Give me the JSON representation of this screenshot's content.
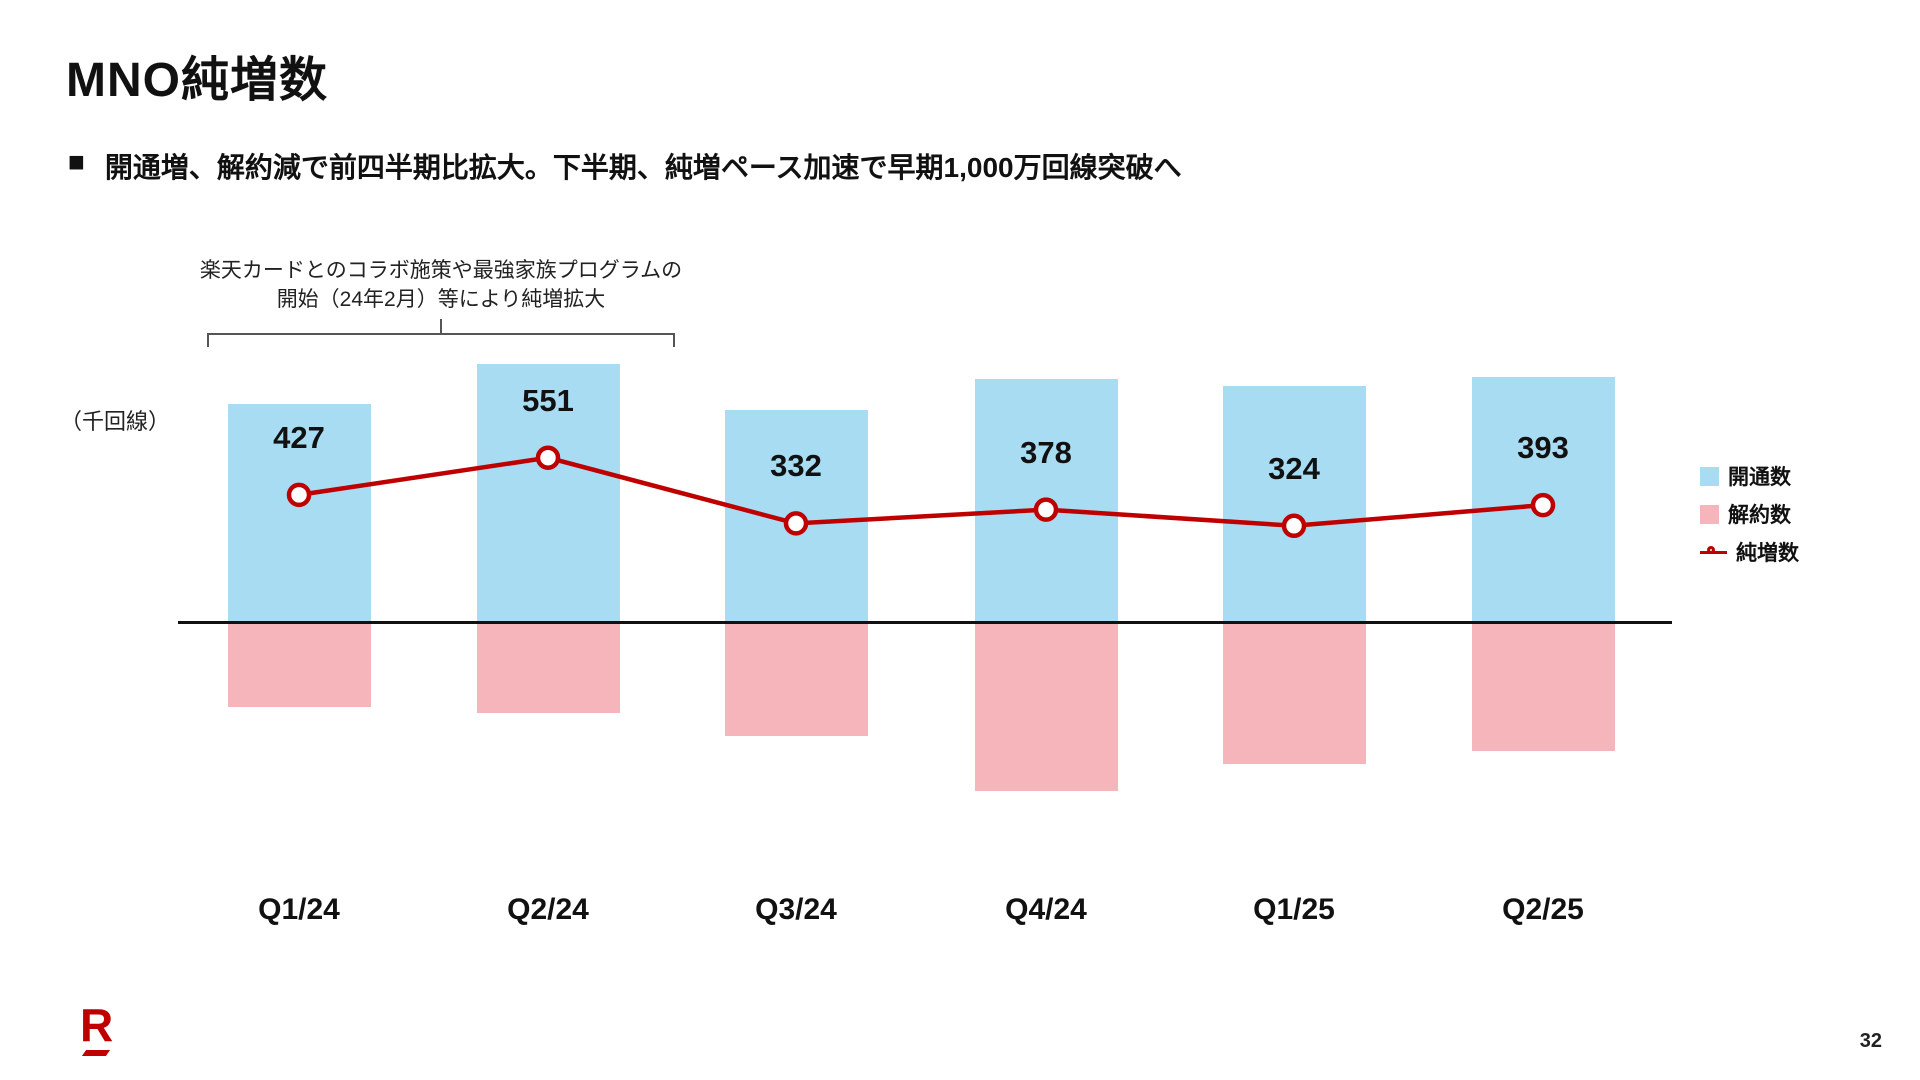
{
  "slide": {
    "title": "MNO純増数",
    "bullet_marker": "■",
    "bullet_text": "開通増、解約減で前四半期比拡大。下半期、純増ペース加速で早期1,000万回線突破へ",
    "annotation": {
      "line1": "楽天カードとのコラボ施策や最強家族プログラムの",
      "line2": "開始（24年2月）等により純増拡大"
    },
    "unit_label": "（千回線）",
    "logo_letter": "R",
    "page_number": "32"
  },
  "legend": {
    "items": [
      {
        "label": "開通数",
        "type": "square",
        "color": "#a8dcf2"
      },
      {
        "label": "解約数",
        "type": "square",
        "color": "#f5b5bb"
      },
      {
        "label": "純増数",
        "type": "line-marker",
        "color": "#bf0000"
      }
    ]
  },
  "chart_data": {
    "type": "bar",
    "subtype": "bars-above-below-zero-with-line",
    "title": "MNO純増数",
    "ylabel": "（千回線）",
    "categories": [
      "Q1/24",
      "Q2/24",
      "Q3/24",
      "Q4/24",
      "Q1/25",
      "Q2/25"
    ],
    "series": [
      {
        "name": "開通数",
        "type": "bar",
        "direction": "positive",
        "color": "#a8dcf2",
        "values": [
          730,
          865,
          710,
          815,
          790,
          820
        ]
      },
      {
        "name": "解約数",
        "type": "bar",
        "direction": "negative",
        "color": "#f5b5bb",
        "values": [
          280,
          300,
          375,
          560,
          470,
          425
        ]
      },
      {
        "name": "純増数",
        "type": "line",
        "color": "#bf0000",
        "marker": "open-circle",
        "data_labels": true,
        "values": [
          427,
          551,
          332,
          378,
          324,
          393
        ]
      }
    ],
    "grid": false,
    "legend_position": "right",
    "annotation_span": [
      "Q1/24",
      "Q2/24"
    ]
  }
}
